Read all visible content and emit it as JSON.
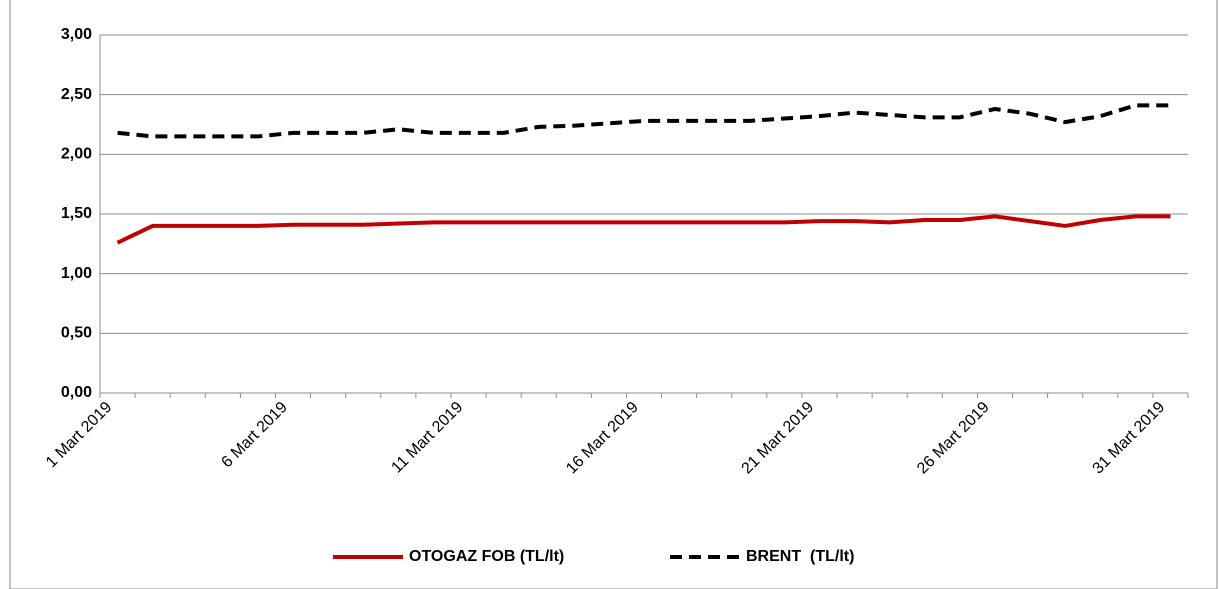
{
  "chart_data": {
    "type": "line",
    "categories": [
      "1 Mart 2019",
      null,
      null,
      null,
      null,
      "6 Mart 2019",
      null,
      null,
      null,
      null,
      "11 Mart 2019",
      null,
      null,
      null,
      null,
      "16 Mart 2019",
      null,
      null,
      null,
      null,
      "21 Mart 2019",
      null,
      null,
      null,
      null,
      "26 Mart 2019",
      null,
      null,
      null,
      null,
      "31 Mart 2019"
    ],
    "series": [
      {
        "name": "OTOGAZ FOB (TL/lt)",
        "color": "#c00000",
        "dash": false,
        "values": [
          1.26,
          1.4,
          1.4,
          1.4,
          1.4,
          1.41,
          1.41,
          1.41,
          1.42,
          1.43,
          1.43,
          1.43,
          1.43,
          1.43,
          1.43,
          1.43,
          1.43,
          1.43,
          1.43,
          1.43,
          1.44,
          1.44,
          1.43,
          1.45,
          1.45,
          1.48,
          1.44,
          1.4,
          1.45,
          1.48,
          1.48
        ]
      },
      {
        "name": "BRENT  (TL/lt)",
        "color": "#000000",
        "dash": true,
        "values": [
          2.18,
          2.15,
          2.15,
          2.15,
          2.15,
          2.18,
          2.18,
          2.18,
          2.21,
          2.18,
          2.18,
          2.18,
          2.23,
          2.24,
          2.26,
          2.28,
          2.28,
          2.28,
          2.28,
          2.3,
          2.32,
          2.35,
          2.33,
          2.31,
          2.31,
          2.38,
          2.34,
          2.27,
          2.32,
          2.41,
          2.41
        ]
      }
    ],
    "ylim": [
      0,
      3
    ],
    "yticks": [
      {
        "value": 0,
        "label": "0,00"
      },
      {
        "value": 0.5,
        "label": "0,50"
      },
      {
        "value": 1,
        "label": "1,00"
      },
      {
        "value": 1.5,
        "label": "1,50"
      },
      {
        "value": 2,
        "label": "2,00"
      },
      {
        "value": 2.5,
        "label": "2,50"
      },
      {
        "value": 3,
        "label": "3,00"
      }
    ],
    "grid": true,
    "legend": "bottom"
  }
}
